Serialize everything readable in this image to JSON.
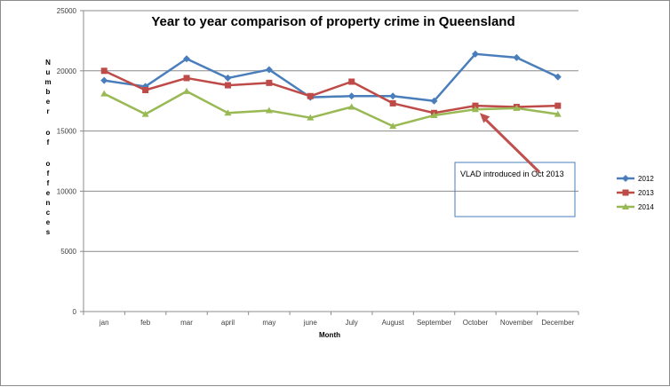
{
  "chart_data": {
    "type": "line",
    "title": "Year to year comparison of property crime in Queensland",
    "xlabel": "Month",
    "ylabel": "Number of offences",
    "categories": [
      "jan",
      "feb",
      "mar",
      "april",
      "may",
      "june",
      "July",
      "August",
      "September",
      "October",
      "November",
      "December"
    ],
    "ylim": [
      0,
      25000
    ],
    "yticks": [
      0,
      5000,
      10000,
      15000,
      20000,
      25000
    ],
    "grid": true,
    "legend_position": "right",
    "series": [
      {
        "name": "2012",
        "color": "#4a7ebb",
        "marker": "diamond",
        "values": [
          19200,
          18700,
          21000,
          19400,
          20100,
          17800,
          17900,
          17900,
          17500,
          21400,
          21100,
          19500
        ]
      },
      {
        "name": "2013",
        "color": "#be4b48",
        "marker": "square",
        "values": [
          20000,
          18400,
          19400,
          18800,
          19000,
          17900,
          19100,
          17300,
          16500,
          17100,
          17000,
          17100
        ]
      },
      {
        "name": "2014",
        "color": "#98b954",
        "marker": "triangle",
        "values": [
          18100,
          16400,
          18300,
          16500,
          16700,
          16100,
          17000,
          15400,
          16300,
          16800,
          16900,
          16400
        ]
      }
    ],
    "annotations": [
      {
        "text": "VLAD introduced in Oct 2013",
        "points_to": {
          "category": "October",
          "value": 16800
        }
      }
    ]
  }
}
